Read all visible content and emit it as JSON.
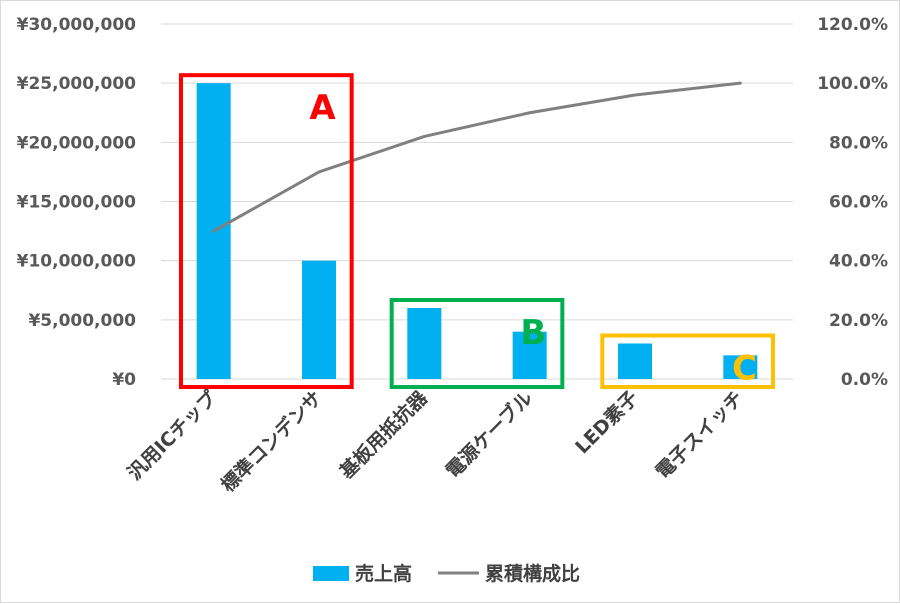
{
  "chart_data": {
    "type": "bar",
    "categories": [
      "汎用ICチップ",
      "標準コンデンサ",
      "基板用抵抗器",
      "電源ケーブル",
      "LED素子",
      "電子スイッチ"
    ],
    "series": [
      {
        "name": "売上高",
        "type": "bar",
        "axis": "left",
        "color": "#00b0f0",
        "values": [
          25000000,
          10000000,
          6000000,
          4000000,
          3000000,
          2000000
        ]
      },
      {
        "name": "累積構成比",
        "type": "line",
        "axis": "right",
        "color": "#808080",
        "values": [
          0.5,
          0.7,
          0.82,
          0.9,
          0.96,
          1.0
        ]
      }
    ],
    "y_left": {
      "range": [
        0,
        30000000
      ],
      "tick_labels": [
        "¥0",
        "¥5,000,000",
        "¥10,000,000",
        "¥15,000,000",
        "¥20,000,000",
        "¥25,000,000",
        "¥30,000,000"
      ]
    },
    "y_right": {
      "range": [
        0,
        1.2
      ],
      "tick_labels": [
        "0.0%",
        "20.0%",
        "40.0%",
        "60.0%",
        "80.0%",
        "100.0%",
        "120.0%"
      ]
    },
    "grid": true,
    "legend": "bottom",
    "groups": [
      {
        "label": "A",
        "color": "#ff0000",
        "from": 0,
        "to": 1
      },
      {
        "label": "B",
        "color": "#00b050",
        "from": 2,
        "to": 3
      },
      {
        "label": "C",
        "color": "#ffc000",
        "from": 4,
        "to": 5
      }
    ]
  }
}
